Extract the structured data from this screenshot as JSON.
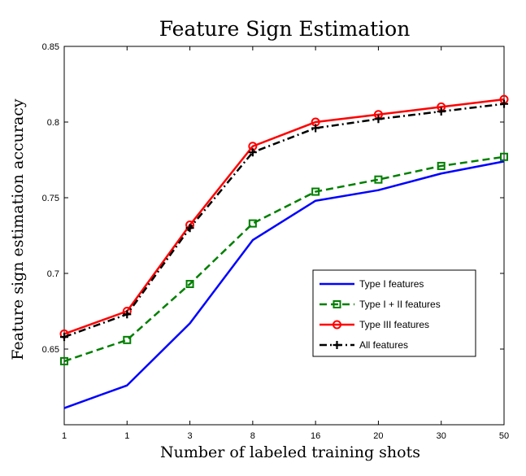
{
  "chart_data": {
    "type": "line",
    "title": "Feature Sign Estimation",
    "xlabel": "Number of labeled training shots",
    "ylabel": "Feature sign estimation accuracy",
    "categories": [
      "1",
      "1",
      "3",
      "8",
      "16",
      "20",
      "30",
      "50"
    ],
    "ylim": [
      0.6,
      0.85
    ],
    "yticks": [
      0.65,
      0.7,
      0.75,
      0.8,
      0.85
    ],
    "ytick_labels": [
      "0.65",
      "0.7",
      "0.75",
      "0.8",
      "0.85"
    ],
    "grid": false,
    "legend_position": "center-right",
    "series": [
      {
        "name": "Type I features",
        "color": "#0000ff",
        "dash": "solid",
        "marker": "none",
        "values": [
          0.611,
          0.626,
          0.667,
          0.722,
          0.748,
          0.755,
          0.766,
          0.774
        ]
      },
      {
        "name": "Type I + II features",
        "color": "#007f00",
        "dash": "dashed",
        "marker": "square",
        "values": [
          0.642,
          0.656,
          0.693,
          0.733,
          0.754,
          0.762,
          0.771,
          0.777
        ]
      },
      {
        "name": "Type III features",
        "color": "#ff0000",
        "dash": "solid",
        "marker": "circle",
        "values": [
          0.66,
          0.675,
          0.732,
          0.784,
          0.8,
          0.805,
          0.81,
          0.815
        ]
      },
      {
        "name": "All features",
        "color": "#000000",
        "dash": "dashdot",
        "marker": "plus",
        "values": [
          0.658,
          0.673,
          0.73,
          0.78,
          0.796,
          0.802,
          0.807,
          0.812
        ]
      }
    ]
  }
}
